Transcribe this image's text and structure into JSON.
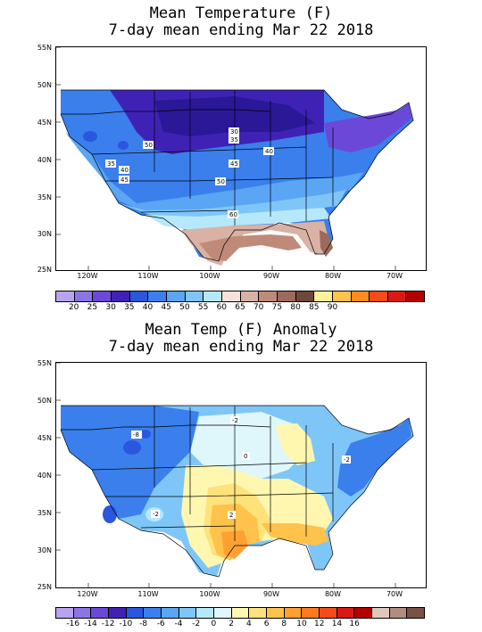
{
  "top": {
    "title_line1": "Mean Temperature (F)",
    "title_line2": "7-day mean ending Mar 22 2018",
    "lat_labels": [
      "55N",
      "50N",
      "45N",
      "40N",
      "35N",
      "30N",
      "25N"
    ],
    "lon_labels": [
      "120W",
      "110W",
      "100W",
      "90W",
      "80W",
      "70W"
    ],
    "contour_labels": [
      "30",
      "35",
      "50",
      "35",
      "40",
      "45",
      "40",
      "45",
      "50",
      "60"
    ],
    "colorbar_colors": [
      "#b9a3f0",
      "#8c74e6",
      "#6b48d8",
      "#3f22b5",
      "#2b56de",
      "#3a7fec",
      "#5aa5f4",
      "#7fc6f8",
      "#b6e8fb",
      "#f6e2d6",
      "#d9b2a5",
      "#c08a78",
      "#9c6a5a",
      "#6f483c",
      "#fff099",
      "#ffc24a",
      "#ff8a1e",
      "#f64a1a",
      "#d91a14",
      "#b30000"
    ],
    "colorbar_labels": [
      "20",
      "25",
      "30",
      "35",
      "40",
      "45",
      "50",
      "55",
      "60",
      "65",
      "70",
      "75",
      "80",
      "85",
      "90"
    ]
  },
  "bottom": {
    "title_line1": "Mean Temp (F) Anomaly",
    "title_line2": "7-day mean ending Mar 22 2018",
    "lat_labels": [
      "55N",
      "50N",
      "45N",
      "40N",
      "35N",
      "30N",
      "25N"
    ],
    "lon_labels": [
      "120W",
      "110W",
      "100W",
      "90W",
      "80W",
      "70W"
    ],
    "contour_labels": [
      "-8",
      "-2",
      "0",
      "-2",
      "-2",
      "2"
    ],
    "colorbar_colors": [
      "#b9a3f0",
      "#8c74e6",
      "#6b48d8",
      "#3f22b5",
      "#2b56de",
      "#3a7fec",
      "#5aa5f4",
      "#7fc6f8",
      "#b6e8fb",
      "#dff6fb",
      "#fff7b0",
      "#ffe27a",
      "#ffc24a",
      "#ffa033",
      "#ff7a1e",
      "#f64a1a",
      "#d91a14",
      "#b30000",
      "#e0c7bd",
      "#b08d80",
      "#7a5146"
    ],
    "colorbar_labels": [
      "-16",
      "-14",
      "-12",
      "-10",
      "-8",
      "-6",
      "-4",
      "-2",
      "0",
      "2",
      "4",
      "6",
      "8",
      "10",
      "12",
      "14",
      "16"
    ]
  }
}
